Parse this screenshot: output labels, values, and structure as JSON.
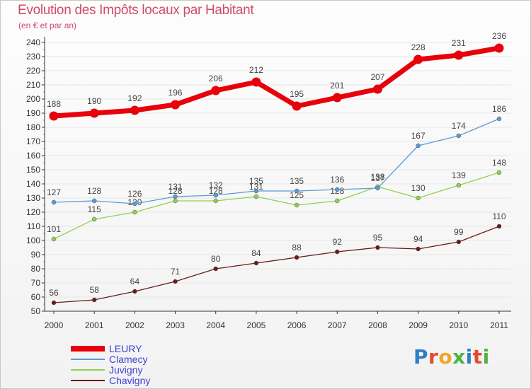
{
  "title": "Evolution des Impôts locaux par Habitant",
  "subtitle": "(en € et par an)",
  "logo": {
    "text": "Proxiti",
    "letter_colors": [
      "#2e7fc8",
      "#e8492d",
      "#f0a52c",
      "#4bb543",
      "#2e7fc8",
      "#e8492d",
      "#4bb543"
    ]
  },
  "colors": {
    "axis": "#333333",
    "grid": "#e6e6e6",
    "tick_text": "#333333",
    "value_text": "#444444"
  },
  "chart_data": {
    "type": "line",
    "x": [
      "2000",
      "2001",
      "2002",
      "2003",
      "2004",
      "2005",
      "2006",
      "2007",
      "2008",
      "2009",
      "2010",
      "2011"
    ],
    "ylim": [
      50,
      240
    ],
    "yticks": [
      50,
      60,
      70,
      80,
      90,
      100,
      110,
      120,
      130,
      140,
      150,
      160,
      170,
      180,
      190,
      200,
      210,
      220,
      230,
      240
    ],
    "grid": true,
    "legend_position": "bottom-left",
    "series": [
      {
        "name": "LEURY",
        "color": "#e8000b",
        "values": [
          188,
          190,
          192,
          196,
          206,
          212,
          195,
          201,
          207,
          228,
          231,
          236
        ]
      },
      {
        "name": "Clamecy",
        "color": "#5b9bd5",
        "values": [
          127,
          128,
          126,
          131,
          132,
          135,
          135,
          136,
          137,
          167,
          174,
          186
        ]
      },
      {
        "name": "Juvigny",
        "color": "#8fd14f",
        "values": [
          101,
          115,
          120,
          128,
          128,
          131,
          125,
          128,
          138,
          130,
          139,
          148
        ]
      },
      {
        "name": "Chavigny",
        "color": "#6b1a1a",
        "values": [
          56,
          58,
          64,
          71,
          80,
          84,
          88,
          92,
          95,
          94,
          99,
          110
        ]
      }
    ]
  }
}
